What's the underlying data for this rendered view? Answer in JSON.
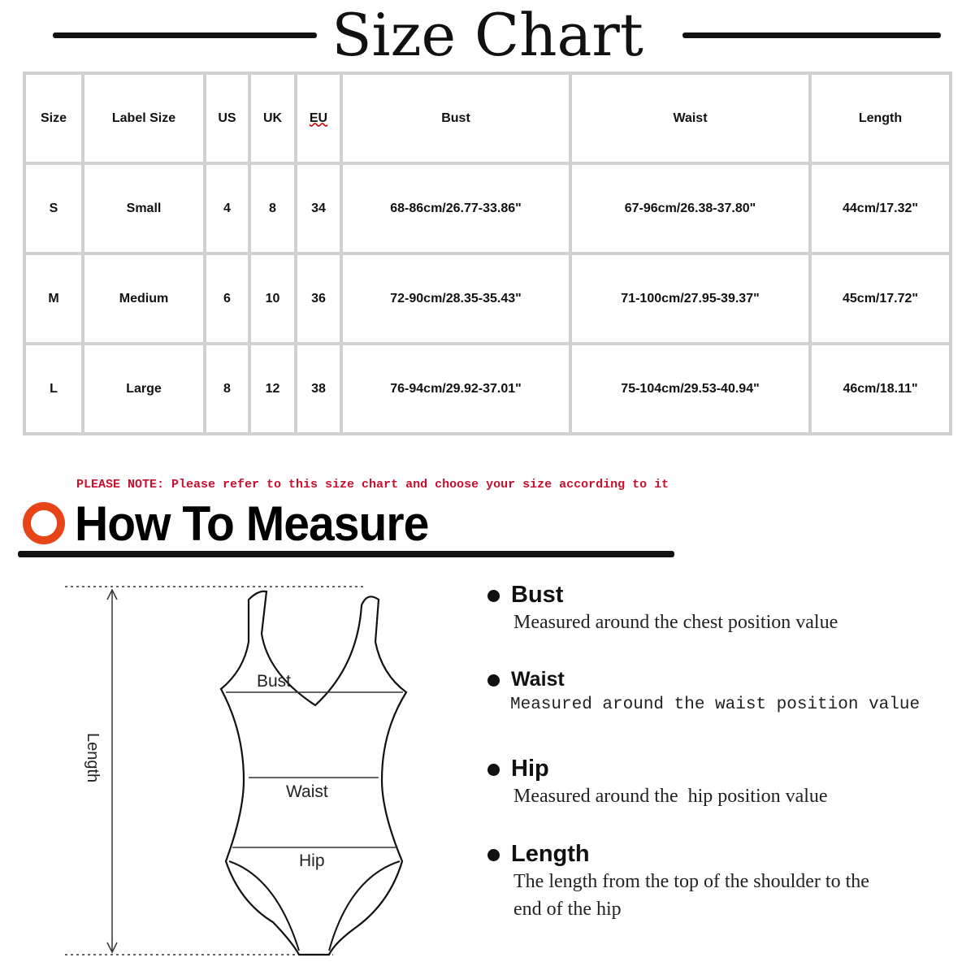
{
  "title": "Size Chart",
  "table": {
    "headers": [
      "Size",
      "Label Size",
      "US",
      "UK",
      "EU",
      "Bust",
      "Waist",
      "Length"
    ],
    "rows": [
      [
        "S",
        "Small",
        "4",
        "8",
        "34",
        "68-86cm/26.77-33.86\"",
        "67-96cm/26.38-37.80\"",
        "44cm/17.32\""
      ],
      [
        "M",
        "Medium",
        "6",
        "10",
        "36",
        "72-90cm/28.35-35.43\"",
        "71-100cm/27.95-39.37\"",
        "45cm/17.72\""
      ],
      [
        "L",
        "Large",
        "8",
        "12",
        "38",
        "76-94cm/29.92-37.01\"",
        "75-104cm/29.53-40.94\"",
        "46cm/18.11\""
      ]
    ]
  },
  "note": "PLEASE NOTE: Please refer to this size chart and choose your size according to it",
  "measure_title": "How To Measure",
  "diagram": {
    "bust": "Bust",
    "waist": "Waist",
    "hip": "Hip",
    "length": "Length"
  },
  "items": [
    {
      "title": "Bust",
      "desc": "Measured around the chest position value"
    },
    {
      "title": "Waist",
      "desc": "Measured around the waist position value"
    },
    {
      "title": "Hip",
      "desc": "Measured around the  hip position value"
    },
    {
      "title": "Length",
      "desc": "The length from the top of the shoulder to the end of the hip"
    }
  ],
  "colors": {
    "accent": "#e8441a",
    "note": "#c8102e"
  }
}
